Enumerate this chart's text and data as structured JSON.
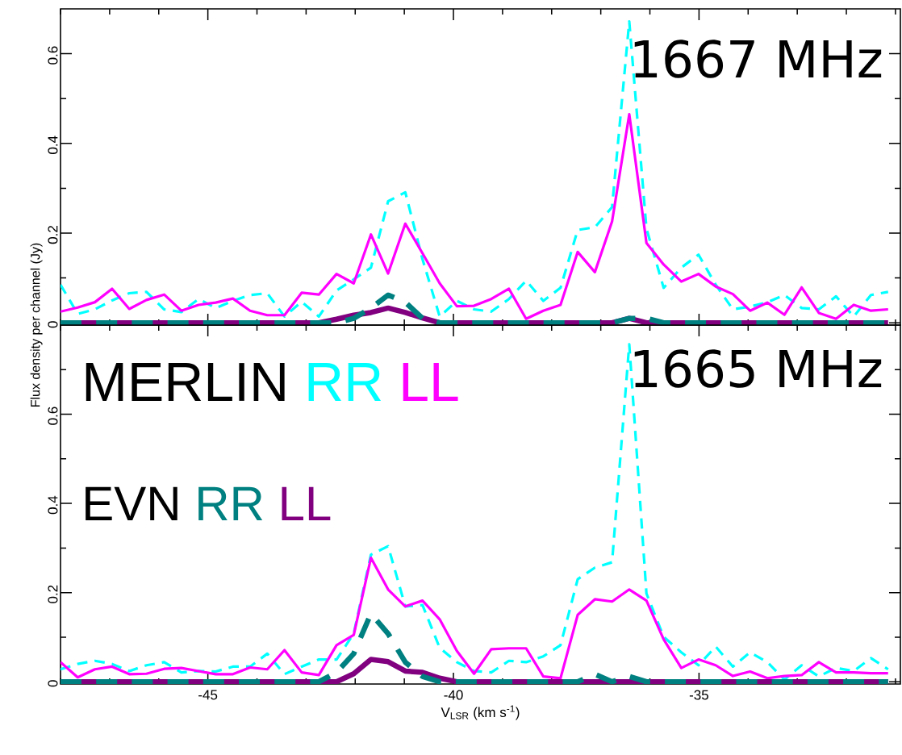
{
  "chart_data": [
    {
      "type": "line",
      "title": "1667 MHz",
      "tick_labels": "y",
      "x": [
        -48.0,
        -47.65,
        -47.3,
        -46.95,
        -46.6,
        -46.25,
        -45.89,
        -45.54,
        -45.19,
        -44.84,
        -44.49,
        -44.14,
        -43.79,
        -43.44,
        -43.09,
        -42.74,
        -42.38,
        -42.03,
        -41.68,
        -41.33,
        -40.98,
        -40.63,
        -40.28,
        -39.93,
        -39.58,
        -39.23,
        -38.87,
        -38.52,
        -38.17,
        -37.82,
        -37.47,
        -37.12,
        -36.77,
        -36.42,
        -36.07,
        -35.72,
        -35.36,
        -35.01,
        -34.66,
        -34.31,
        -33.96,
        -33.61,
        -33.26,
        -32.91,
        -32.56,
        -32.21,
        -31.85,
        -31.5,
        -31.15
      ],
      "xlim": [
        -48.0,
        -30.9
      ],
      "xticks": [
        {
          "value": -48,
          "label": null
        },
        {
          "value": -47,
          "label": null
        },
        {
          "value": -46,
          "label": null
        },
        -45,
        {
          "value": -44,
          "label": null
        },
        {
          "value": -43,
          "label": null
        },
        {
          "value": -42,
          "label": null
        },
        {
          "value": -41,
          "label": null
        },
        -40,
        {
          "value": -39,
          "label": null
        },
        {
          "value": -38,
          "label": null
        },
        {
          "value": -37,
          "label": null
        },
        {
          "value": -36,
          "label": null
        },
        -35,
        {
          "value": -34,
          "label": null
        },
        {
          "value": -33,
          "label": null
        },
        {
          "value": -32,
          "label": null
        },
        {
          "value": -31,
          "label": null
        }
      ],
      "ylim": [
        -0.005,
        0.7
      ],
      "yticks": [
        0,
        {
          "value": 0.1,
          "label": null
        },
        0.2,
        {
          "value": 0.3,
          "label": null
        },
        0.4,
        {
          "value": 0.5,
          "label": null
        },
        0.6
      ],
      "series": [
        {
          "color": "#00ffff",
          "line_style": "dashed",
          "values": [
            0.085,
            0.02,
            0.03,
            0.05,
            0.066,
            0.069,
            0.03,
            0.024,
            0.053,
            0.033,
            0.049,
            0.062,
            0.066,
            0.014,
            0.047,
            0.014,
            0.072,
            0.097,
            0.123,
            0.271,
            0.291,
            0.142,
            0.014,
            0.049,
            0.03,
            0.025,
            0.053,
            0.094,
            0.049,
            0.078,
            0.207,
            0.213,
            0.258,
            0.672,
            0.21,
            0.078,
            0.123,
            0.152,
            0.085,
            0.03,
            0.036,
            0.046,
            0.062,
            0.033,
            0.03,
            0.059,
            0.014,
            0.062,
            0.069
          ]
        },
        {
          "color": "#ff00ff",
          "line_style": "solid",
          "values": [
            0.025,
            0.034,
            0.046,
            0.076,
            0.031,
            0.051,
            0.063,
            0.027,
            0.04,
            0.045,
            0.054,
            0.027,
            0.017,
            0.017,
            0.067,
            0.063,
            0.109,
            0.088,
            0.197,
            0.11,
            0.221,
            0.155,
            0.088,
            0.037,
            0.038,
            0.053,
            0.076,
            0.009,
            0.027,
            0.04,
            0.158,
            0.113,
            0.226,
            0.465,
            0.178,
            0.13,
            0.092,
            0.109,
            0.081,
            0.064,
            0.027,
            0.045,
            0.018,
            0.079,
            0.022,
            0.009,
            0.04,
            0.027,
            0.03
          ]
        },
        {
          "color": "#008080",
          "line_style": "dashed",
          "values": [
            0,
            0,
            0,
            0,
            0,
            0,
            0,
            0,
            0,
            0,
            0,
            0,
            0,
            0,
            0,
            0,
            0,
            0.01,
            0.033,
            0.062,
            0.046,
            0.01,
            0,
            0,
            0,
            0,
            0,
            0,
            0,
            0,
            0,
            0,
            0,
            0.01,
            0.01,
            0,
            0,
            0,
            0,
            0,
            0,
            0,
            0,
            0,
            0,
            0,
            0,
            0,
            0
          ]
        },
        {
          "color": "#800080",
          "line_style": "solid",
          "values": [
            0,
            0,
            0,
            0,
            0,
            0,
            0,
            0,
            0,
            0,
            0,
            0,
            0,
            0,
            0,
            0,
            0.008,
            0.017,
            0.023,
            0.033,
            0.023,
            0.011,
            0,
            0,
            0,
            0,
            0,
            0,
            0,
            0,
            0,
            0,
            0,
            0.01,
            0,
            0,
            0,
            0,
            0,
            0,
            0,
            0,
            0,
            0,
            0,
            0,
            0,
            0,
            0
          ]
        }
      ]
    },
    {
      "type": "line",
      "title": "1665 MHz",
      "xlabel": "V$_{LSR}$ (km s$^{-1}$)",
      "ylabel": "Flux density per channel (Jy)",
      "legend": "top left",
      "annotations": [
        "MERLIN",
        "EVN"
      ],
      "x": [
        -48.0,
        -47.65,
        -47.3,
        -46.95,
        -46.6,
        -46.25,
        -45.89,
        -45.54,
        -45.19,
        -44.84,
        -44.49,
        -44.14,
        -43.79,
        -43.44,
        -43.09,
        -42.74,
        -42.38,
        -42.03,
        -41.68,
        -41.33,
        -40.98,
        -40.63,
        -40.28,
        -39.93,
        -39.58,
        -39.23,
        -38.87,
        -38.52,
        -38.17,
        -37.82,
        -37.47,
        -37.12,
        -36.77,
        -36.42,
        -36.07,
        -35.72,
        -35.36,
        -35.01,
        -34.66,
        -34.31,
        -33.96,
        -33.61,
        -33.26,
        -32.91,
        -32.56,
        -32.21,
        -31.85,
        -31.5,
        -31.15
      ],
      "xlim": [
        -48.0,
        -30.9
      ],
      "xticks": [
        {
          "value": -48,
          "label": null
        },
        {
          "value": -47,
          "label": null
        },
        {
          "value": -46,
          "label": null
        },
        -45,
        {
          "value": -44,
          "label": null
        },
        {
          "value": -43,
          "label": null
        },
        {
          "value": -42,
          "label": null
        },
        {
          "value": -41,
          "label": null
        },
        -40,
        {
          "value": -39,
          "label": null
        },
        {
          "value": -38,
          "label": null
        },
        {
          "value": -37,
          "label": null
        },
        {
          "value": -36,
          "label": null
        },
        -35,
        {
          "value": -34,
          "label": null
        },
        {
          "value": -33,
          "label": null
        },
        {
          "value": -32,
          "label": null
        },
        {
          "value": -31,
          "label": null
        }
      ],
      "ylim": [
        -0.005,
        0.8
      ],
      "yticks": [
        0,
        {
          "value": 0.1,
          "label": null
        },
        0.2,
        {
          "value": 0.3,
          "label": null
        },
        0.4,
        {
          "value": 0.5,
          "label": null
        },
        0.6,
        {
          "value": 0.7,
          "label": null
        }
      ],
      "series": [
        {
          "name": "RR",
          "color": "#00ffff",
          "line_style": "dashed",
          "values": [
            0.028,
            0.04,
            0.047,
            0.04,
            0.024,
            0.037,
            0.044,
            0.021,
            0.024,
            0.023,
            0.034,
            0.034,
            0.063,
            0.017,
            0.034,
            0.05,
            0.05,
            0.108,
            0.285,
            0.304,
            0.169,
            0.172,
            0.076,
            0.044,
            0.024,
            0.021,
            0.047,
            0.044,
            0.057,
            0.082,
            0.23,
            0.256,
            0.268,
            0.757,
            0.198,
            0.101,
            0.066,
            0.037,
            0.079,
            0.034,
            0.066,
            0.044,
            0.005,
            0.037,
            0.012,
            0.031,
            0.024,
            0.053,
            0.028
          ]
        },
        {
          "name": "LL",
          "color": "#ff00ff",
          "line_style": "solid",
          "values": [
            0.044,
            0.01,
            0.028,
            0.034,
            0.017,
            0.018,
            0.029,
            0.031,
            0.024,
            0.017,
            0.017,
            0.032,
            0.028,
            0.071,
            0.021,
            0.015,
            0.082,
            0.105,
            0.278,
            0.207,
            0.169,
            0.182,
            0.14,
            0.069,
            0.018,
            0.073,
            0.075,
            0.075,
            0.012,
            0.008,
            0.15,
            0.185,
            0.18,
            0.207,
            0.182,
            0.095,
            0.031,
            0.05,
            0.037,
            0.013,
            0.023,
            0.008,
            0.013,
            0.015,
            0.044,
            0.021,
            0.021,
            0.019,
            0.019
          ]
        },
        {
          "name": "RR",
          "color": "#008080",
          "line_style": "dashed",
          "values": [
            0,
            0,
            0,
            0,
            0,
            0,
            0,
            0,
            0,
            0,
            0,
            0,
            0,
            0,
            0,
            0,
            0.021,
            0.063,
            0.153,
            0.108,
            0.044,
            0.012,
            0,
            0,
            0,
            0,
            0,
            0,
            0,
            0,
            0,
            0.017,
            0,
            0.012,
            0,
            0,
            0,
            0,
            0,
            0,
            0,
            0,
            0,
            0,
            0,
            0,
            0,
            0,
            0
          ]
        },
        {
          "name": "LL",
          "color": "#800080",
          "line_style": "solid",
          "values": [
            0,
            0,
            0,
            0,
            0,
            0,
            0,
            0,
            0,
            0,
            0,
            0,
            0,
            0,
            0,
            0,
            0,
            0.018,
            0.05,
            0.045,
            0.024,
            0.021,
            0.008,
            0,
            0,
            0,
            0,
            0,
            0,
            0,
            0,
            0,
            0,
            0,
            0,
            0,
            0,
            0,
            0,
            0,
            0,
            0,
            0,
            0,
            0,
            0,
            0,
            0,
            0
          ]
        }
      ]
    }
  ]
}
